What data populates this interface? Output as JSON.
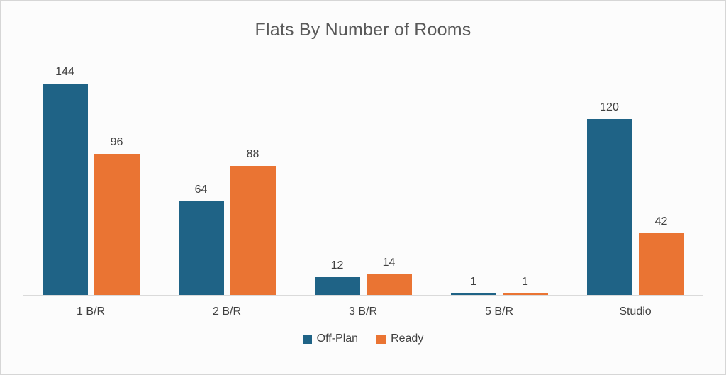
{
  "frame": {
    "background": "#FCFCFC",
    "border_color": "#D6D6D6"
  },
  "chart_data": {
    "type": "bar",
    "title": "Flats By Number of Rooms",
    "categories": [
      "1 B/R",
      "2 B/R",
      "3 B/R",
      "5 B/R",
      "Studio"
    ],
    "series": [
      {
        "name": "Off-Plan",
        "color": "#1F6386",
        "values": [
          144,
          64,
          12,
          1,
          120
        ]
      },
      {
        "name": "Ready",
        "color": "#EA7433",
        "values": [
          96,
          88,
          14,
          1,
          42
        ]
      }
    ],
    "ylim": [
      0,
      144
    ],
    "xlabel": "",
    "ylabel": "",
    "grid": false,
    "data_labels": true,
    "legend_position": "bottom",
    "axis_line_color": "#DADADA",
    "title_color": "#595959",
    "label_color": "#404040"
  }
}
